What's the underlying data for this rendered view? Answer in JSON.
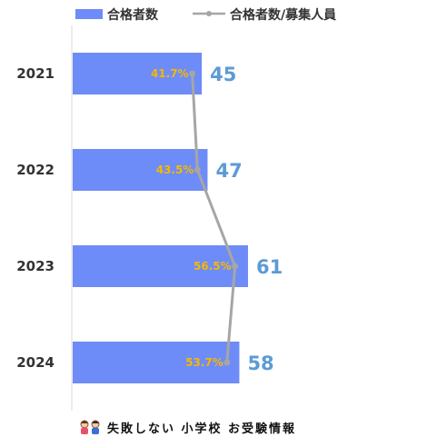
{
  "legend": {
    "bar_label": "合格者数",
    "line_label": "合格者数/募集人員"
  },
  "footer": {
    "logo_icon": "children-icon",
    "text": "失敗しない 小学校 お受験情報"
  },
  "colors": {
    "bar": "#6E8CF7",
    "line": "#A6A6A6",
    "value_label": "#5B9BD5",
    "pct_label": "#F5B800",
    "axis": "#D9D9D9"
  },
  "chart_data": {
    "type": "bar",
    "orientation": "horizontal",
    "categories": [
      "2021",
      "2022",
      "2023",
      "2024"
    ],
    "series": [
      {
        "name": "合格者数",
        "type": "bar",
        "values": [
          45,
          47,
          61,
          58
        ],
        "labels": [
          "45",
          "47",
          "61",
          "58"
        ]
      },
      {
        "name": "合格者数/募集人員",
        "type": "line",
        "values": [
          41.7,
          43.5,
          56.5,
          53.7
        ],
        "labels": [
          "41.7%",
          "43.5%",
          "56.5%",
          "53.7%"
        ]
      }
    ],
    "xlim": [
      0,
      100
    ],
    "grid": false,
    "legend_position": "top"
  }
}
